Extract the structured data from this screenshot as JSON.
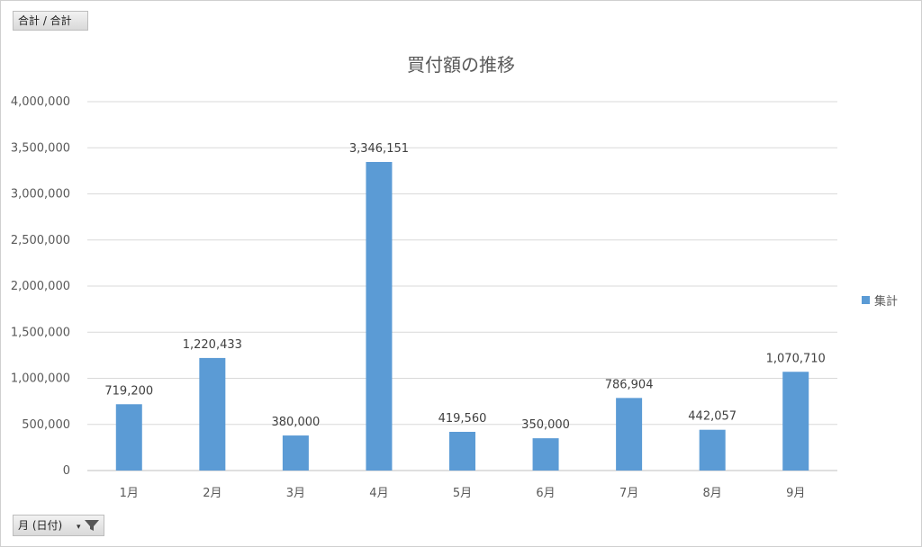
{
  "top_field": {
    "label": "合計 / 合計"
  },
  "bottom_field": {
    "label": "月 (日付)"
  },
  "colors": {
    "bar": "#5b9bd5",
    "grid": "#d9d9d9",
    "text": "#595959"
  },
  "chart_data": {
    "type": "bar",
    "title": "買付額の推移",
    "categories": [
      "1月",
      "2月",
      "3月",
      "4月",
      "5月",
      "6月",
      "7月",
      "8月",
      "9月"
    ],
    "series": [
      {
        "name": "集計",
        "values": [
          719200,
          1220433,
          380000,
          3346151,
          419560,
          350000,
          786904,
          442057,
          1070710
        ]
      }
    ],
    "data_labels": [
      "719,200",
      "1,220,433",
      "380,000",
      "3,346,151",
      "419,560",
      "350,000",
      "786,904",
      "442,057",
      "1,070,710"
    ],
    "ylim": [
      0,
      4000000
    ],
    "yticks": [
      0,
      500000,
      1000000,
      1500000,
      2000000,
      2500000,
      3000000,
      3500000,
      4000000
    ],
    "ytick_labels": [
      "0",
      "500,000",
      "1,000,000",
      "1,500,000",
      "2,000,000",
      "2,500,000",
      "3,000,000",
      "3,500,000",
      "4,000,000"
    ],
    "grid": true,
    "legend_position": "right"
  }
}
